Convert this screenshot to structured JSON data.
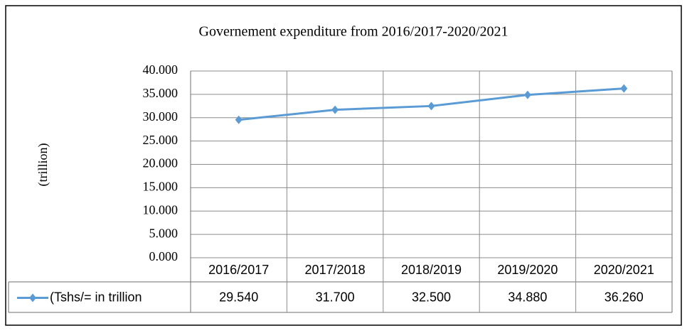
{
  "chart_data": {
    "type": "line",
    "title": "Governement  expenditure from 2016/2017-2020/2021",
    "y_label": "(trillion)",
    "categories": [
      "2016/2017",
      "2017/2018",
      "2018/2019",
      "2019/2020",
      "2020/2021"
    ],
    "series": [
      {
        "name": "(Tshs/= in trillion",
        "color": "#5b9bd5",
        "values": [
          29.54,
          31.7,
          32.5,
          34.88,
          36.26
        ],
        "value_labels": [
          "29.540",
          "31.700",
          "32.500",
          "34.880",
          "36.260"
        ]
      }
    ],
    "ylim": [
      0,
      40
    ],
    "yticks": [
      {
        "value": 0,
        "label": "0.000"
      },
      {
        "value": 5,
        "label": "5.000"
      },
      {
        "value": 10,
        "label": "10.000"
      },
      {
        "value": 15,
        "label": "15.000"
      },
      {
        "value": 20,
        "label": "20.000"
      },
      {
        "value": 25,
        "label": "25.000"
      },
      {
        "value": 30,
        "label": "30.000"
      },
      {
        "value": 35,
        "label": "35.000"
      },
      {
        "value": 40,
        "label": "40.000"
      }
    ],
    "grid": true,
    "data_table": true
  }
}
